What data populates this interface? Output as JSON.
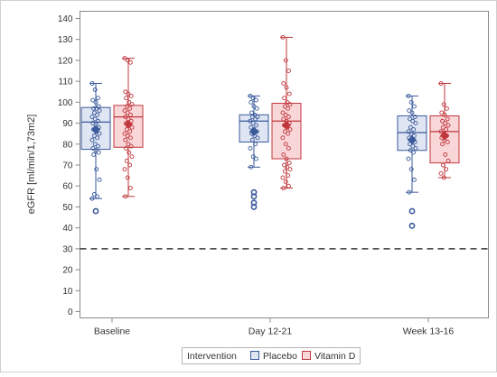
{
  "chart_data": {
    "type": "box",
    "title": "",
    "xlabel": "",
    "ylabel": "eGFR [ml/min/1,73m2]",
    "ylim": [
      0,
      140
    ],
    "yticks": [
      0,
      10,
      20,
      30,
      40,
      50,
      60,
      70,
      80,
      90,
      100,
      110,
      120,
      130,
      140
    ],
    "reference_line": {
      "y": 30,
      "style": "dashed"
    },
    "grid": false,
    "categories": [
      "Baseline",
      "Day 12-21",
      "Week 13-16"
    ],
    "legend": {
      "title": "Intervention",
      "position": "bottom-center"
    },
    "series": [
      {
        "name": "Placebo",
        "color": "#3a5a9b",
        "fill": "#dfe5f2",
        "boxes": [
          {
            "whisker_low": 54,
            "q1": 77.5,
            "median": 90.5,
            "q3": 97.5,
            "whisker_high": 109,
            "mean": 87,
            "points": [
              109,
              106,
              102,
              101,
              100,
              98,
              97,
              97,
              96,
              95,
              94,
              93,
              92,
              91,
              90,
              89,
              88,
              87,
              86,
              85,
              84,
              83,
              82,
              80,
              79,
              78,
              77,
              76,
              75,
              68,
              63,
              56,
              55,
              54
            ],
            "outliers": [
              48
            ]
          },
          {
            "whisker_low": 69,
            "q1": 81,
            "median": 91,
            "q3": 94,
            "whisker_high": 103,
            "mean": 86,
            "points": [
              103,
              102,
              101,
              100,
              98,
              97,
              95,
              94,
              93,
              93,
              92,
              91,
              90,
              89,
              88,
              87,
              86,
              85,
              84,
              83,
              82,
              80,
              78,
              74,
              73,
              69
            ],
            "outliers": [
              57,
              55,
              52,
              50
            ]
          },
          {
            "whisker_low": 57,
            "q1": 77,
            "median": 85.5,
            "q3": 93.5,
            "whisker_high": 103,
            "mean": 82,
            "points": [
              103,
              100,
              98,
              96,
              95,
              93,
              92,
              91,
              90,
              88,
              87,
              86,
              85,
              84,
              83,
              82,
              81,
              80,
              79,
              78,
              77,
              76,
              73,
              68,
              63,
              57
            ],
            "outliers": [
              48,
              41
            ]
          }
        ]
      },
      {
        "name": "Vitamin D",
        "color": "#c0383e",
        "fill": "#f9d6d8",
        "boxes": [
          {
            "whisker_low": 55,
            "q1": 78.5,
            "median": 93,
            "q3": 98.5,
            "whisker_high": 121,
            "mean": 89.5,
            "points": [
              121,
              120,
              119,
              105,
              104,
              103,
              102,
              100,
              99,
              98,
              97,
              96,
              95,
              94,
              93,
              92,
              91,
              90,
              89,
              88,
              87,
              86,
              85,
              84,
              83,
              82,
              80,
              79,
              78,
              76,
              74,
              72,
              70,
              68,
              64,
              59,
              55
            ],
            "outliers": []
          },
          {
            "whisker_low": 59,
            "q1": 73,
            "median": 91,
            "q3": 99.5,
            "whisker_high": 131,
            "mean": 89,
            "points": [
              131,
              120,
              115,
              109,
              107,
              104,
              102,
              100,
              99,
              98,
              97,
              95,
              94,
              93,
              92,
              91,
              90,
              89,
              88,
              87,
              86,
              85,
              83,
              80,
              78,
              75,
              73,
              71,
              70,
              69,
              68,
              67,
              65,
              64,
              62,
              60,
              59
            ],
            "outliers": []
          },
          {
            "whisker_low": 64,
            "q1": 71,
            "median": 86,
            "q3": 93.5,
            "whisker_high": 109,
            "mean": 84,
            "points": [
              109,
              99,
              97,
              95,
              94,
              92,
              91,
              90,
              89,
              88,
              87,
              86,
              85,
              84,
              83,
              82,
              81,
              80,
              75,
              72,
              70,
              68,
              66,
              64
            ],
            "outliers": []
          }
        ]
      }
    ]
  }
}
